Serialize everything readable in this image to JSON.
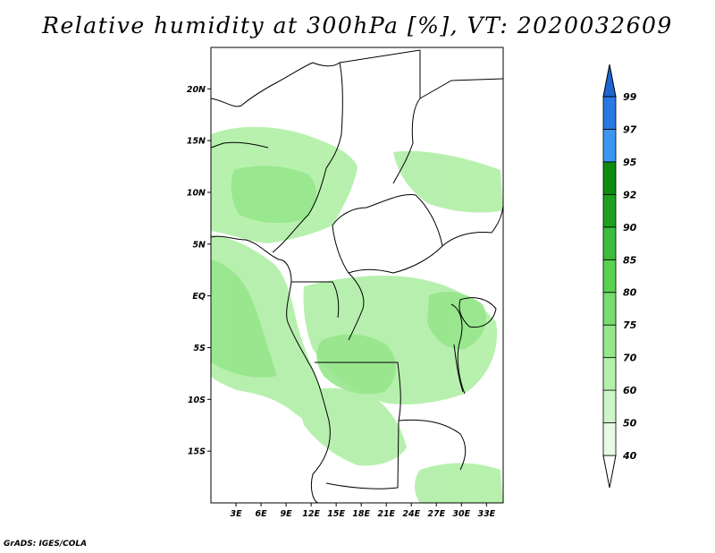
{
  "title": "Relative humidity at 300hPa [%], VT: 2020032609",
  "credit": "GrADS: IGES/COLA",
  "map": {
    "lat_labels": [
      {
        "label": "20N",
        "lat": 20
      },
      {
        "label": "15N",
        "lat": 15
      },
      {
        "label": "10N",
        "lat": 10
      },
      {
        "label": "5N",
        "lat": 5
      },
      {
        "label": "EQ",
        "lat": 0
      },
      {
        "label": "5S",
        "lat": -5
      },
      {
        "label": "10S",
        "lat": -10
      },
      {
        "label": "15S",
        "lat": -15
      }
    ],
    "lon_labels": [
      {
        "label": "3E",
        "lon": 3
      },
      {
        "label": "6E",
        "lon": 6
      },
      {
        "label": "9E",
        "lon": 9
      },
      {
        "label": "12E",
        "lon": 12
      },
      {
        "label": "15E",
        "lon": 15
      },
      {
        "label": "18E",
        "lon": 18
      },
      {
        "label": "21E",
        "lon": 21
      },
      {
        "label": "24E",
        "lon": 24
      },
      {
        "label": "27E",
        "lon": 27
      },
      {
        "label": "30E",
        "lon": 30
      },
      {
        "label": "33E",
        "lon": 33
      }
    ],
    "lon_range": [
      0,
      35
    ],
    "lat_range": [
      -20,
      24
    ],
    "fill_color": "#96e68c"
  },
  "colorbar": {
    "levels": [
      "40",
      "50",
      "60",
      "70",
      "75",
      "80",
      "85",
      "90",
      "92",
      "95",
      "97",
      "99"
    ],
    "colors": [
      "#ffffff",
      "#e6fae6",
      "#cdf5c8",
      "#b4f0aa",
      "#96e68c",
      "#78dc6e",
      "#5ad250",
      "#3cbe3c",
      "#1ea01e",
      "#0f8c0f",
      "#3c96f0",
      "#2878e6",
      "#1e64d2"
    ]
  }
}
